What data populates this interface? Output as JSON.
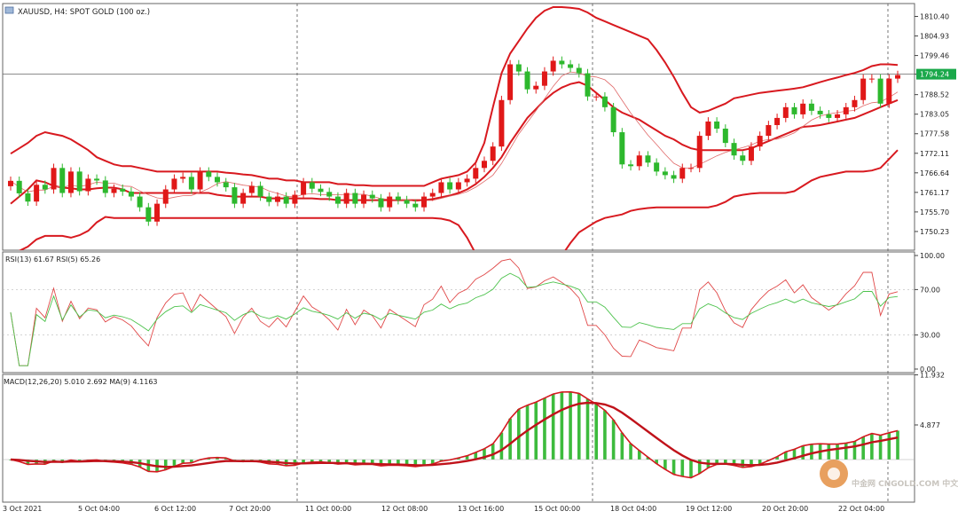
{
  "chart_data": {
    "type": "candlestick",
    "symbol_label": "XAUUSD, H4:  SPOT GOLD (100 oz.)",
    "current_price_label": "1794.24",
    "price_axis": {
      "ylim": [
        1745.0,
        1814.0
      ],
      "ticks": [
        1750.23,
        1755.7,
        1761.17,
        1766.64,
        1772.11,
        1777.58,
        1783.05,
        1788.52,
        1794.24,
        1799.46,
        1804.93,
        1810.4
      ],
      "tick_labels": [
        "1750.23",
        "1755.70",
        "1761.17",
        "1766.64",
        "1772.11",
        "1777.58",
        "1783.05",
        "1788.52",
        "1794.24",
        "1799.46",
        "1804.93",
        "1810.40"
      ]
    },
    "time_axis_labels": [
      "3 Oct 2021",
      "5 Oct 04:00",
      "6 Oct 12:00",
      "7 Oct 20:00",
      "11 Oct 00:00",
      "12 Oct 08:00",
      "13 Oct 16:00",
      "15 Oct 00:00",
      "18 Oct 04:00",
      "19 Oct 12:00",
      "20 Oct 20:00",
      "22 Oct 04:00"
    ],
    "close": [
      1764.4,
      1760.9,
      1758.6,
      1763.3,
      1762.0,
      1768.0,
      1761.0,
      1767.0,
      1761.5,
      1765.0,
      1764.5,
      1761.0,
      1762.2,
      1761.4,
      1760.0,
      1757.0,
      1753.0,
      1758.0,
      1762.0,
      1765.0,
      1765.5,
      1762.0,
      1767.0,
      1765.5,
      1764.0,
      1762.6,
      1758.0,
      1761.0,
      1763.0,
      1760.0,
      1758.5,
      1760.0,
      1758.0,
      1760.5,
      1764.0,
      1762.2,
      1761.3,
      1760.0,
      1758.0,
      1761.0,
      1758.0,
      1760.5,
      1759.5,
      1757.0,
      1760.0,
      1759.0,
      1758.0,
      1757.0,
      1760.0,
      1761.0,
      1764.0,
      1762.0,
      1764.0,
      1765.0,
      1768.0,
      1770.0,
      1774.0,
      1787.0,
      1797.0,
      1795.0,
      1790.0,
      1791.0,
      1795.0,
      1798.0,
      1797.0,
      1796.0,
      1794.5,
      1788.0,
      1788.0,
      1785.0,
      1778.0,
      1769.0,
      1768.5,
      1771.5,
      1769.5,
      1767.0,
      1766.0,
      1765.0,
      1768.0,
      1768.0,
      1777.0,
      1781.0,
      1779.0,
      1775.0,
      1771.5,
      1770.0,
      1774.0,
      1777.0,
      1780.0,
      1782.0,
      1785.0,
      1783.0,
      1786.0,
      1784.0,
      1783.0,
      1782.0,
      1783.0,
      1785.0,
      1787.0,
      1793.0,
      1793.0,
      1786.0,
      1793.0,
      1794.0
    ],
    "bollinger": {
      "middle": [
        1758.0,
        1760.0,
        1762.0,
        1764.5,
        1764.0,
        1763.0,
        1762.5,
        1762.3,
        1762.0,
        1762.0,
        1762.3,
        1762.5,
        1762.5,
        1762.0,
        1761.0,
        1761.0,
        1761.0,
        1761.0,
        1761.0,
        1761.0,
        1761.0,
        1761.0,
        1761.0,
        1761.0,
        1760.5,
        1760.2,
        1760.0,
        1760.0,
        1760.0,
        1760.0,
        1759.5,
        1759.5,
        1759.5,
        1759.5,
        1759.5,
        1759.5,
        1759.3,
        1759.3,
        1759.0,
        1759.0,
        1759.0,
        1759.0,
        1759.0,
        1759.0,
        1759.0,
        1759.0,
        1759.0,
        1759.0,
        1759.0,
        1759.3,
        1759.8,
        1760.3,
        1761.0,
        1762.0,
        1763.5,
        1765.5,
        1768.0,
        1771.0,
        1775.0,
        1778.5,
        1782.0,
        1784.5,
        1787.0,
        1789.0,
        1790.5,
        1791.5,
        1792.0,
        1791.0,
        1789.0,
        1787.0,
        1785.0,
        1783.5,
        1782.5,
        1781.5,
        1780.0,
        1778.5,
        1777.0,
        1776.0,
        1774.5,
        1773.5,
        1773.0,
        1773.0,
        1773.0,
        1773.0,
        1773.0,
        1773.0,
        1773.5,
        1774.5,
        1775.5,
        1776.5,
        1777.5,
        1778.5,
        1779.5,
        1779.7,
        1780.0,
        1780.5,
        1781.0,
        1781.5,
        1782.0,
        1783.0,
        1784.0,
        1785.0,
        1786.0,
        1787.0
      ],
      "upper": [
        1772.0,
        1773.5,
        1775.0,
        1777.0,
        1778.0,
        1777.5,
        1777.0,
        1776.0,
        1774.5,
        1773.0,
        1771.0,
        1770.0,
        1769.0,
        1768.5,
        1768.5,
        1768.0,
        1767.5,
        1767.0,
        1767.0,
        1767.0,
        1767.0,
        1767.0,
        1767.0,
        1767.0,
        1767.0,
        1766.7,
        1766.5,
        1766.2,
        1766.0,
        1765.5,
        1765.0,
        1765.0,
        1764.5,
        1764.5,
        1764.0,
        1764.0,
        1764.0,
        1764.0,
        1763.5,
        1763.5,
        1763.2,
        1763.2,
        1763.0,
        1763.0,
        1763.0,
        1763.0,
        1763.0,
        1763.0,
        1763.0,
        1764.0,
        1765.0,
        1765.5,
        1766.0,
        1767.0,
        1769.5,
        1775.0,
        1785.0,
        1794.5,
        1800.0,
        1803.5,
        1807.0,
        1810.0,
        1812.0,
        1813.0,
        1813.0,
        1812.8,
        1812.5,
        1811.5,
        1810.0,
        1809.0,
        1808.0,
        1807.0,
        1806.0,
        1805.0,
        1804.0,
        1801.0,
        1797.5,
        1793.5,
        1789.0,
        1785.0,
        1783.5,
        1784.0,
        1785.0,
        1786.0,
        1787.5,
        1788.0,
        1788.5,
        1789.0,
        1789.3,
        1789.6,
        1789.9,
        1790.2,
        1790.6,
        1791.3,
        1792.0,
        1792.7,
        1793.3,
        1794.0,
        1794.6,
        1795.4,
        1796.5,
        1797.0,
        1797.0,
        1796.8
      ],
      "lower": [
        1743.5,
        1744.8,
        1746.0,
        1748.0,
        1749.0,
        1749.0,
        1749.0,
        1748.5,
        1749.2,
        1750.4,
        1752.8,
        1754.3,
        1754.0,
        1754.0,
        1754.0,
        1754.0,
        1754.0,
        1754.0,
        1754.0,
        1754.0,
        1754.0,
        1754.0,
        1754.0,
        1754.0,
        1754.0,
        1754.0,
        1754.0,
        1754.0,
        1754.0,
        1754.0,
        1754.0,
        1754.0,
        1754.0,
        1754.0,
        1754.0,
        1754.0,
        1754.0,
        1754.0,
        1754.0,
        1754.0,
        1754.0,
        1754.0,
        1754.0,
        1754.0,
        1754.0,
        1754.0,
        1754.0,
        1754.0,
        1754.0,
        1754.0,
        1753.8,
        1753.3,
        1752.0,
        1748.5,
        1744.0,
        1740.0,
        1735.0,
        1731.5,
        1730.5,
        1730.0,
        1731.0,
        1733.0,
        1736.0,
        1739.5,
        1743.5,
        1747.0,
        1750.0,
        1751.5,
        1753.0,
        1754.0,
        1754.5,
        1755.0,
        1756.0,
        1756.5,
        1756.8,
        1757.0,
        1757.0,
        1757.0,
        1757.0,
        1757.0,
        1757.0,
        1757.0,
        1757.5,
        1758.5,
        1760.0,
        1760.5,
        1760.8,
        1761.0,
        1761.0,
        1761.0,
        1761.0,
        1761.5,
        1763.0,
        1764.5,
        1765.5,
        1766.0,
        1766.5,
        1767.0,
        1767.0,
        1767.0,
        1767.3,
        1768.0,
        1770.5,
        1773.0
      ]
    },
    "rsi": {
      "label": "RSI(13) 61.67 RSI(5) 65.26",
      "ylim": [
        0,
        100
      ],
      "tick_labels": [
        "100.00",
        "70.00",
        "30.00",
        "0.00"
      ],
      "tick_values": [
        100,
        70,
        30,
        0
      ]
    },
    "macd": {
      "label": "MACD(12,26,20) 5.010 2.692 MA(9) 4.1163",
      "ylim": [
        -6.0,
        12.0
      ],
      "tick_labels": [
        "11.932",
        "4.877"
      ],
      "tick_values": [
        11.932,
        4.877
      ]
    },
    "watermark": "中金网 CNGOLD.COM 中文财经新媒体"
  },
  "colors": {
    "bull": "#e01818",
    "bear": "#2db82d",
    "band": "#d8191f",
    "grid": "#555555",
    "axis_text": "#222222"
  }
}
